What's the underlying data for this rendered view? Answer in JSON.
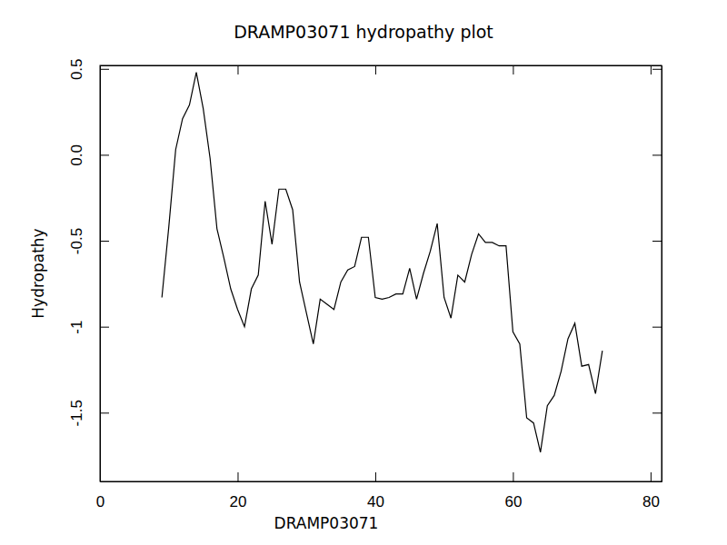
{
  "chart_data": {
    "type": "line",
    "title": "DRAMP03071 hydropathy plot",
    "x_label": "DRAMP03071",
    "y_label": "Hydropathy",
    "color": "#000000",
    "grid": false,
    "x": [
      9,
      10,
      11,
      12,
      13,
      14,
      15,
      16,
      17,
      18,
      19,
      20,
      21,
      22,
      23,
      24,
      25,
      26,
      27,
      28,
      29,
      30,
      31,
      32,
      33,
      34,
      35,
      36,
      37,
      38,
      39,
      40,
      41,
      42,
      43,
      44,
      45,
      46,
      47,
      48,
      49,
      50,
      51,
      52,
      53,
      54,
      55,
      56,
      57,
      58,
      59,
      60,
      61,
      62,
      63,
      64,
      65,
      66,
      67,
      68,
      69,
      70,
      71,
      72,
      73
    ],
    "values": [
      -0.83,
      -0.42,
      0.03,
      0.21,
      0.29,
      0.48,
      0.27,
      -0.02,
      -0.43,
      -0.6,
      -0.78,
      -0.9,
      -1.0,
      -0.78,
      -0.7,
      -0.27,
      -0.52,
      -0.2,
      -0.2,
      -0.32,
      -0.74,
      -0.92,
      -1.1,
      -0.84,
      -0.87,
      -0.9,
      -0.74,
      -0.67,
      -0.65,
      -0.48,
      -0.48,
      -0.83,
      -0.84,
      -0.83,
      -0.81,
      -0.81,
      -0.66,
      -0.84,
      -0.69,
      -0.56,
      -0.4,
      -0.83,
      -0.95,
      -0.7,
      -0.74,
      -0.58,
      -0.46,
      -0.51,
      -0.51,
      -0.53,
      -0.53,
      -1.03,
      -1.1,
      -1.53,
      -1.56,
      -1.73,
      -1.46,
      -1.4,
      -1.26,
      -1.07,
      -0.98,
      -1.23,
      -1.22,
      -1.39,
      -1.14
    ],
    "xlim": [
      0,
      81.6
    ],
    "ylim": [
      -1.9,
      0.52
    ],
    "xticks": [
      0,
      20,
      40,
      60,
      80
    ],
    "yticks": [
      0.5,
      {
        "value": 0,
        "label": "0.0"
      },
      -0.5,
      -1,
      -1.5
    ]
  }
}
